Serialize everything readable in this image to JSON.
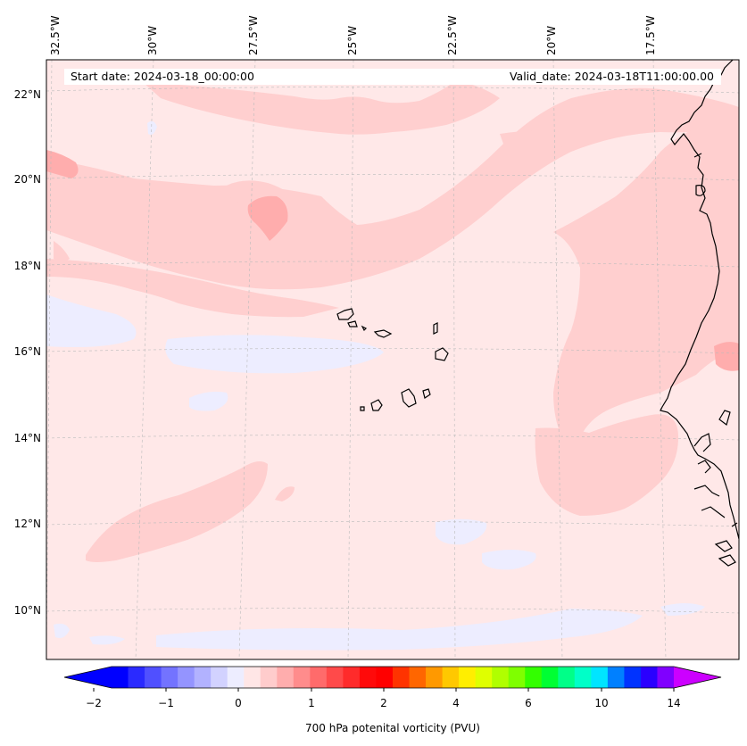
{
  "header": {
    "start_date": "Start date: 2024-03-18_00:00:00",
    "valid_date": "Valid_date: 2024-03-18T11:00:00.00"
  },
  "map": {
    "longitude_labels": [
      "32.5°W",
      "30°W",
      "27.5°W",
      "25°W",
      "22.5°W",
      "20°W",
      "17.5°W"
    ],
    "latitude_labels": [
      "22°N",
      "20°N",
      "18°N",
      "16°N",
      "14°N",
      "12°N",
      "10°N"
    ],
    "background_color": "#ffe8e8",
    "coastline_color": "#000000",
    "grid": "dashed light gray"
  },
  "colorbar": {
    "title": "700 hPa potenital vorticity (PVU)",
    "tick_labels": [
      "−2",
      "−1",
      "0",
      "1",
      "2",
      "4",
      "6",
      "10",
      "14"
    ],
    "colors": [
      "#0000ff",
      "#2a2aff",
      "#5050ff",
      "#7373ff",
      "#9494ff",
      "#b2b2ff",
      "#d2d2ff",
      "#ededff",
      "#ffe6e6",
      "#ffcccc",
      "#ffadad",
      "#ff8c8c",
      "#ff6b6b",
      "#ff4a4a",
      "#ff2b2b",
      "#ff0a0a",
      "#ff0000",
      "#ff3300",
      "#ff6600",
      "#ff9900",
      "#ffc800",
      "#ffee00",
      "#dfff00",
      "#b0ff00",
      "#7fff00",
      "#33ff00",
      "#00ff33",
      "#00ff88",
      "#00ffc8",
      "#00e5ff",
      "#0080ff",
      "#0033ff",
      "#2a00ff",
      "#8000ff"
    ],
    "under_color": "#0000ff",
    "over_color": "#cc00ff"
  }
}
